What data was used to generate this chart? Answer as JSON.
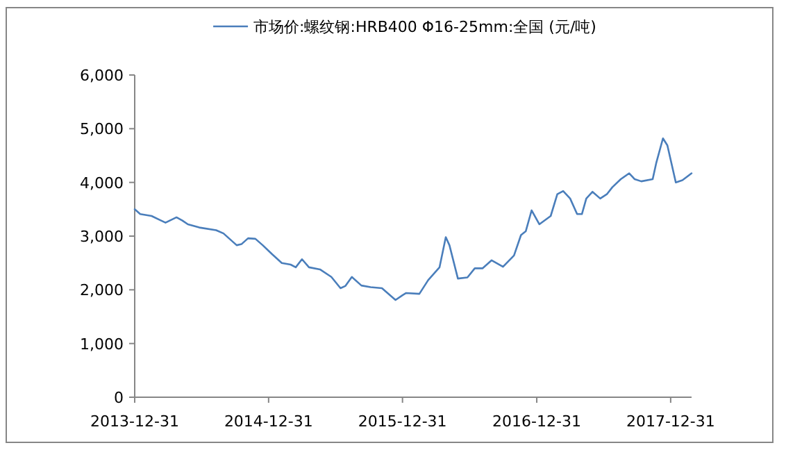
{
  "chart_data": {
    "type": "line",
    "legend": "top",
    "xlim": [
      "2013-12-31",
      "2018-02-26"
    ],
    "xticks": [
      "2013-12-31",
      "2014-12-31",
      "2015-12-31",
      "2016-12-31",
      "2017-12-31"
    ],
    "ylim": [
      0,
      6000
    ],
    "yticks": [
      0,
      {
        "value": 1000,
        "label": "1,000"
      },
      {
        "value": 2000,
        "label": "2,000"
      },
      {
        "value": 3000,
        "label": "3,000"
      },
      {
        "value": 4000,
        "label": "4,000"
      },
      {
        "value": 5000,
        "label": "5,000"
      },
      {
        "value": 6000,
        "label": "6,000"
      }
    ],
    "x": [
      "2013-12-31",
      "2014-01-15",
      "2014-02-15",
      "2014-03-10",
      "2014-03-25",
      "2014-04-24",
      "2014-05-10",
      "2014-05-25",
      "2014-06-25",
      "2014-08-10",
      "2014-08-30",
      "2014-10-05",
      "2014-10-18",
      "2014-11-05",
      "2014-11-25",
      "2014-12-15",
      "2015-01-10",
      "2015-02-05",
      "2015-03-01",
      "2015-03-15",
      "2015-04-01",
      "2015-04-20",
      "2015-05-20",
      "2015-06-20",
      "2015-07-15",
      "2015-07-28",
      "2015-08-15",
      "2015-09-10",
      "2015-10-05",
      "2015-11-05",
      "2015-12-12",
      "2015-12-31",
      "2016-01-10",
      "2016-02-15",
      "2016-03-10",
      "2016-04-10",
      "2016-04-27",
      "2016-05-07",
      "2016-05-30",
      "2016-06-25",
      "2016-07-15",
      "2016-08-05",
      "2016-08-30",
      "2016-09-30",
      "2016-10-30",
      "2016-11-18",
      "2016-12-01",
      "2016-12-17",
      "2017-01-07",
      "2017-02-07",
      "2017-02-25",
      "2017-03-13",
      "2017-04-01",
      "2017-04-20",
      "2017-05-03",
      "2017-05-15",
      "2017-06-01",
      "2017-06-22",
      "2017-07-10",
      "2017-07-25",
      "2017-08-17",
      "2017-09-09",
      "2017-09-24",
      "2017-10-12",
      "2017-11-12",
      "2017-11-22",
      "2017-12-10",
      "2017-12-22",
      "2018-01-14",
      "2018-02-01",
      "2018-02-26"
    ],
    "series": [
      {
        "name": "市场价:螺纹钢:HRB400 Φ16-25mm:全国 (元/吨)",
        "color": "#4a7ebb",
        "values": [
          3500,
          3410,
          3375,
          3300,
          3250,
          3350,
          3290,
          3220,
          3160,
          3110,
          3050,
          2830,
          2850,
          2960,
          2950,
          2830,
          2660,
          2500,
          2470,
          2420,
          2570,
          2420,
          2380,
          2240,
          2030,
          2070,
          2240,
          2080,
          2050,
          2030,
          1810,
          1900,
          1940,
          1925,
          2180,
          2420,
          2980,
          2830,
          2210,
          2230,
          2400,
          2400,
          2550,
          2430,
          2640,
          3020,
          3090,
          3480,
          3220,
          3375,
          3780,
          3840,
          3700,
          3410,
          3410,
          3700,
          3825,
          3700,
          3780,
          3910,
          4060,
          4170,
          4060,
          4020,
          4060,
          4370,
          4820,
          4690,
          4000,
          4040,
          4170
        ]
      }
    ]
  }
}
